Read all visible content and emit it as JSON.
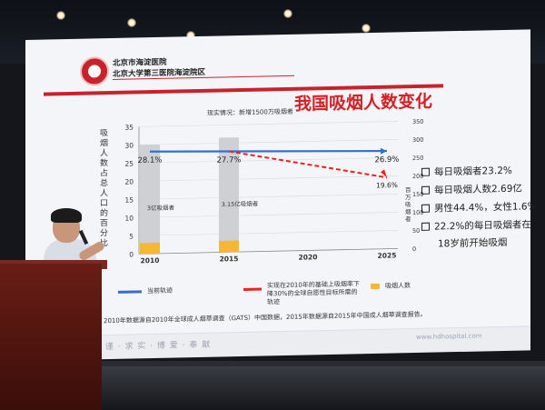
{
  "slide": {
    "hospital_line1": "北京市海淀医院",
    "hospital_line2": "北京大学第三医院海淀院区",
    "title": "我国吸烟人数变化",
    "situation": "现实情况：新增1500万吸烟者",
    "left_axis_label": "吸烟人数占总人口的百分比",
    "right_axis_label": "百万吸烟者",
    "facts": [
      "每日吸烟者23.2%",
      "每日吸烟人数2.69亿",
      "男性44.4%，女性1.6%",
      "22.2%的每日吸烟者在",
      "18岁前开始吸烟"
    ],
    "legend": {
      "current": "当前轨迹",
      "target": "实现在2010年的基础上吸烟率下降30%的全球自愿性目标所需的轨迹",
      "smokers": "吸烟人数"
    },
    "source": "注：2010年数据源自2010年全球成人烟草调查（GATS）中国数据，2015年数据源自2015年中国成人烟草调查报告。",
    "motto": "严 谨 · 求 实 · 博 爱 · 奉 献",
    "website": "www.hdhospital.com"
  },
  "colors": {
    "current_line": "#2f6fd6",
    "target_line": "#e8241c",
    "bar_gray": "#cfd0d3",
    "bar_orange": "#f7b733",
    "title_red": "#d42027"
  },
  "chart_data": {
    "type": "bar",
    "x_ticks": [
      "2010",
      "2015",
      "2020",
      "2025"
    ],
    "left_axis": {
      "range": [
        0,
        35
      ],
      "ticks": [
        "0",
        "5",
        "10",
        "15",
        "20",
        "25",
        "30",
        "35"
      ]
    },
    "right_axis": {
      "range": [
        0,
        350
      ],
      "ticks": [
        "0",
        "50",
        "100",
        "150",
        "200",
        "250",
        "300",
        "350"
      ]
    },
    "bars": [
      {
        "x": "2010",
        "total": 300,
        "smokers": 3.0,
        "label": "3亿吸烟者"
      },
      {
        "x": "2015",
        "total": 315,
        "smokers": 3.15,
        "label": "3.15亿吸烟者"
      }
    ],
    "series": [
      {
        "name": "当前轨迹",
        "points": [
          {
            "x": "2010",
            "y": 28.1,
            "label": "28.1%"
          },
          {
            "x": "2015",
            "y": 27.7,
            "label": "27.7%"
          },
          {
            "x": "2025",
            "y": 26.9,
            "label": "26.9%"
          }
        ]
      },
      {
        "name": "实现在2010年的基础上吸烟率下降30%的全球自愿性目标所需的轨迹",
        "points": [
          {
            "x": "2015",
            "y": 27.7
          },
          {
            "x": "2025",
            "y": 19.6,
            "label": "19.6%"
          }
        ]
      }
    ]
  }
}
